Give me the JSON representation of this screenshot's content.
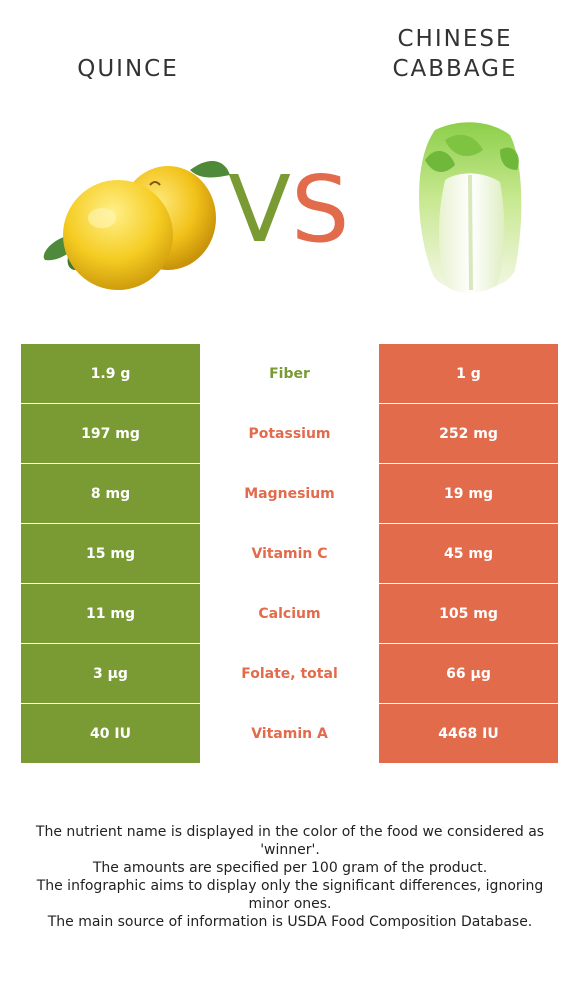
{
  "header": {
    "left_food": "QUINCE",
    "right_food": "CHINESE CABBAGE",
    "vs_left": "V",
    "vs_right": "S"
  },
  "colors": {
    "left": "#7a9b34",
    "right": "#e26b4c"
  },
  "rows": [
    {
      "nutrient": "Fiber",
      "left": "1.9 g",
      "right": "1 g",
      "winner": "left"
    },
    {
      "nutrient": "Potassium",
      "left": "197 mg",
      "right": "252 mg",
      "winner": "right"
    },
    {
      "nutrient": "Magnesium",
      "left": "8 mg",
      "right": "19 mg",
      "winner": "right"
    },
    {
      "nutrient": "Vitamin C",
      "left": "15 mg",
      "right": "45 mg",
      "winner": "right"
    },
    {
      "nutrient": "Calcium",
      "left": "11 mg",
      "right": "105 mg",
      "winner": "right"
    },
    {
      "nutrient": "Folate, total",
      "left": "3 µg",
      "right": "66 µg",
      "winner": "right"
    },
    {
      "nutrient": "Vitamin A",
      "left": "40 IU",
      "right": "4468 IU",
      "winner": "right"
    }
  ],
  "notes": [
    "The nutrient name is displayed in the color of the food we considered as 'winner'.",
    "The amounts are specified per 100 gram of the product.",
    "The infographic aims to display only the significant differences, ignoring minor ones.",
    "The main source of information is USDA Food Composition Database."
  ],
  "icons": {
    "left_image": "quince-image",
    "right_image": "chinese-cabbage-image"
  }
}
